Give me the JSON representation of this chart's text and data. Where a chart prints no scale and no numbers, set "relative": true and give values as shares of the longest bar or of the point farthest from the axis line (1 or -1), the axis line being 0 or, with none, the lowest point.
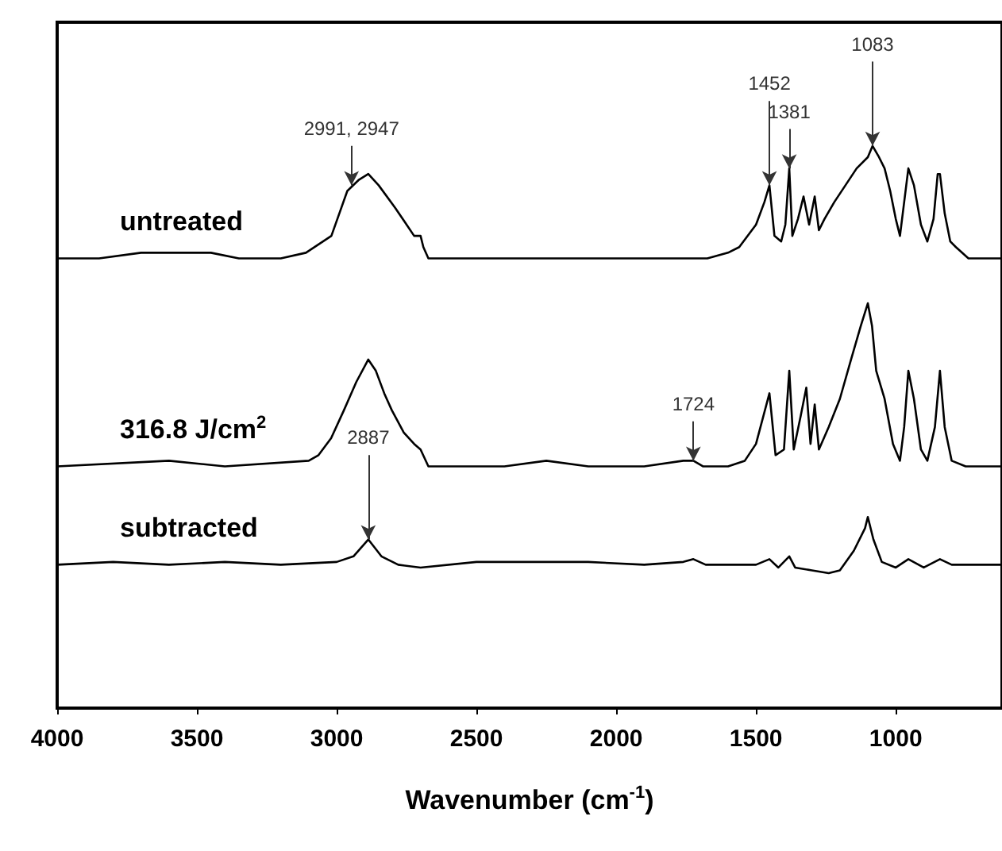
{
  "chart_data": {
    "type": "line",
    "relative": true,
    "xlabel": "Wavenumber (cm$^{-1}$)",
    "xlim": [
      4000,
      620
    ],
    "xticks": [
      4000,
      3500,
      3000,
      2500,
      2000,
      1500,
      1000
    ],
    "marker": "none",
    "line_style": "solid",
    "grid": false,
    "legend": false,
    "series": [
      {
        "name": "untreated",
        "color": "#000000",
        "x": [
          4000,
          3850,
          3700,
          3600,
          3450,
          3350,
          3200,
          3110,
          3019,
          2962,
          2920,
          2887,
          2850,
          2791,
          2750,
          2723,
          2700,
          2690,
          2672,
          2600,
          2400,
          2200,
          2000,
          1800,
          1674,
          1600,
          1560,
          1500,
          1470,
          1452,
          1434,
          1410,
          1395,
          1381,
          1370,
          1350,
          1330,
          1310,
          1290,
          1275,
          1255,
          1220,
          1180,
          1140,
          1100,
          1083,
          1060,
          1040,
          1020,
          1000,
          985,
          970,
          955,
          935,
          910,
          887,
          865,
          850,
          842,
          825,
          805,
          785,
          740,
          620
        ],
        "values": [
          0.8,
          0.8,
          0.81,
          0.81,
          0.81,
          0.8,
          0.8,
          0.81,
          0.84,
          0.92,
          0.94,
          0.95,
          0.93,
          0.89,
          0.86,
          0.84,
          0.84,
          0.82,
          0.8,
          0.8,
          0.8,
          0.8,
          0.8,
          0.8,
          0.8,
          0.81,
          0.82,
          0.86,
          0.9,
          0.93,
          0.84,
          0.83,
          0.86,
          0.96,
          0.84,
          0.87,
          0.91,
          0.86,
          0.91,
          0.85,
          0.87,
          0.9,
          0.93,
          0.96,
          0.98,
          1.0,
          0.98,
          0.96,
          0.92,
          0.87,
          0.84,
          0.9,
          0.96,
          0.93,
          0.86,
          0.83,
          0.87,
          0.95,
          0.95,
          0.88,
          0.83,
          0.82,
          0.8,
          0.8
        ]
      },
      {
        "name": "316.8 J/cm$^{2}$",
        "color": "#000000",
        "x": [
          4000,
          3600,
          3400,
          3100,
          3065,
          3020,
          2974,
          2930,
          2887,
          2860,
          2830,
          2803,
          2760,
          2723,
          2700,
          2672,
          2400,
          2250,
          2100,
          1900,
          1760,
          1724,
          1690,
          1600,
          1540,
          1500,
          1452,
          1430,
          1400,
          1381,
          1365,
          1340,
          1320,
          1305,
          1290,
          1275,
          1240,
          1200,
          1160,
          1125,
          1100,
          1085,
          1070,
          1040,
          1010,
          985,
          970,
          955,
          935,
          910,
          887,
          860,
          842,
          825,
          800,
          750,
          620
        ],
        "values": [
          0.43,
          0.44,
          0.43,
          0.44,
          0.45,
          0.48,
          0.53,
          0.58,
          0.62,
          0.6,
          0.56,
          0.53,
          0.49,
          0.47,
          0.46,
          0.43,
          0.43,
          0.44,
          0.43,
          0.43,
          0.44,
          0.44,
          0.43,
          0.43,
          0.44,
          0.47,
          0.56,
          0.45,
          0.46,
          0.6,
          0.46,
          0.52,
          0.57,
          0.47,
          0.54,
          0.46,
          0.5,
          0.55,
          0.62,
          0.68,
          0.72,
          0.68,
          0.6,
          0.55,
          0.47,
          0.44,
          0.5,
          0.6,
          0.55,
          0.46,
          0.44,
          0.5,
          0.6,
          0.5,
          0.44,
          0.43,
          0.43
        ]
      },
      {
        "name": "subtracted",
        "color": "#000000",
        "x": [
          4000,
          3800,
          3600,
          3400,
          3200,
          3000,
          2940,
          2887,
          2840,
          2780,
          2700,
          2500,
          2300,
          2100,
          1900,
          1760,
          1724,
          1680,
          1500,
          1452,
          1420,
          1381,
          1360,
          1300,
          1240,
          1200,
          1150,
          1110,
          1100,
          1080,
          1050,
          1000,
          955,
          900,
          842,
          800,
          620
        ],
        "values": [
          0.255,
          0.26,
          0.255,
          0.26,
          0.255,
          0.26,
          0.27,
          0.3,
          0.27,
          0.255,
          0.25,
          0.26,
          0.26,
          0.26,
          0.255,
          0.26,
          0.265,
          0.255,
          0.255,
          0.265,
          0.25,
          0.27,
          0.25,
          0.245,
          0.24,
          0.245,
          0.28,
          0.32,
          0.34,
          0.3,
          0.26,
          0.25,
          0.265,
          0.25,
          0.265,
          0.255,
          0.255
        ]
      }
    ],
    "annotations": [
      {
        "text": "2991, 2947",
        "x": 2947,
        "y": 0.93
      },
      {
        "text": "1452",
        "x": 1452,
        "y": 0.93
      },
      {
        "text": "1381",
        "x": 1381,
        "y": 0.96
      },
      {
        "text": "1083",
        "x": 1083,
        "y": 1.0
      },
      {
        "text": "1724",
        "x": 1724,
        "y": 0.44
      },
      {
        "text": "2887",
        "x": 2887,
        "y": 0.3
      }
    ]
  }
}
